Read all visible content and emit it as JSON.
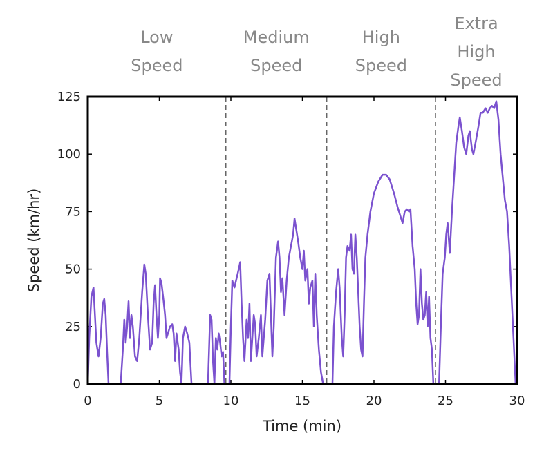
{
  "chart_data": {
    "type": "line",
    "xlabel": "Time (min)",
    "ylabel": "Speed (km/hr)",
    "xlim": [
      0,
      30
    ],
    "ylim": [
      0,
      125
    ],
    "xticks": [
      0,
      5,
      10,
      15,
      20,
      25,
      30
    ],
    "yticks": [
      0,
      25,
      50,
      75,
      100,
      125
    ],
    "color": "#7b52cf",
    "phase_boundaries": [
      9.65,
      16.7,
      24.3
    ],
    "phases": [
      [
        "Low",
        "Speed"
      ],
      [
        "Medium",
        "Speed"
      ],
      [
        "High",
        "Speed"
      ],
      [
        "Extra",
        "High",
        "Speed"
      ]
    ],
    "x": [
      0,
      0.1,
      0.25,
      0.4,
      0.5,
      0.6,
      0.75,
      0.9,
      1.05,
      1.15,
      1.25,
      1.35,
      1.45,
      2.3,
      2.45,
      2.55,
      2.65,
      2.75,
      2.85,
      2.95,
      3.05,
      3.15,
      3.3,
      3.45,
      3.6,
      3.8,
      3.95,
      4.05,
      4.2,
      4.35,
      4.5,
      4.6,
      4.7,
      4.8,
      4.9,
      5.0,
      5.05,
      5.15,
      5.3,
      5.4,
      5.5,
      5.6,
      5.75,
      5.9,
      6.0,
      6.1,
      6.2,
      6.35,
      6.45,
      6.55,
      6.65,
      6.8,
      6.95,
      7.1,
      7.25,
      8.4,
      8.55,
      8.65,
      8.75,
      8.85,
      8.95,
      9.05,
      9.15,
      9.25,
      9.35,
      9.45,
      9.55,
      9.7,
      9.9,
      10.0,
      10.1,
      10.25,
      10.4,
      10.55,
      10.65,
      10.75,
      10.85,
      10.95,
      11.1,
      11.2,
      11.3,
      11.4,
      11.5,
      11.6,
      11.7,
      11.8,
      11.95,
      12.1,
      12.2,
      12.4,
      12.55,
      12.7,
      12.8,
      12.9,
      13.0,
      13.15,
      13.3,
      13.4,
      13.5,
      13.6,
      13.75,
      13.9,
      14.05,
      14.2,
      14.35,
      14.45,
      14.55,
      14.7,
      14.85,
      15.0,
      15.1,
      15.2,
      15.35,
      15.45,
      15.55,
      15.7,
      15.8,
      15.9,
      16.0,
      16.15,
      16.3,
      16.45,
      16.9,
      17.1,
      17.2,
      17.35,
      17.5,
      17.6,
      17.75,
      17.85,
      17.95,
      18.05,
      18.15,
      18.3,
      18.4,
      18.5,
      18.6,
      18.7,
      18.8,
      18.9,
      19.0,
      19.1,
      19.2,
      19.3,
      19.4,
      19.55,
      19.75,
      20.0,
      20.3,
      20.6,
      20.85,
      21.1,
      21.4,
      21.65,
      21.85,
      22.0,
      22.15,
      22.3,
      22.45,
      22.55,
      22.7,
      22.85,
      22.95,
      23.05,
      23.15,
      23.25,
      23.35,
      23.45,
      23.55,
      23.65,
      23.75,
      23.85,
      23.95,
      24.05,
      24.15,
      24.45,
      24.55,
      24.7,
      24.8,
      24.95,
      25.05,
      25.15,
      25.3,
      25.45,
      25.6,
      25.75,
      25.9,
      26.0,
      26.15,
      26.3,
      26.45,
      26.6,
      26.7,
      26.85,
      26.95,
      27.1,
      27.3,
      27.45,
      27.6,
      27.8,
      27.95,
      28.1,
      28.25,
      28.4,
      28.55,
      28.7,
      28.85,
      29.0,
      29.15,
      29.3,
      29.45,
      29.6,
      29.75,
      29.9
    ],
    "values": [
      0,
      20,
      38,
      42,
      30,
      18,
      12,
      20,
      35,
      37,
      30,
      14,
      0,
      0,
      15,
      28,
      18,
      25,
      36,
      20,
      30,
      25,
      12,
      10,
      20,
      40,
      52,
      48,
      30,
      15,
      18,
      35,
      43,
      30,
      20,
      30,
      46,
      44,
      36,
      30,
      20,
      22,
      25,
      26,
      22,
      10,
      22,
      15,
      5,
      0,
      20,
      25,
      22,
      18,
      0,
      0,
      30,
      28,
      10,
      0,
      20,
      15,
      22,
      18,
      12,
      14,
      0,
      0,
      0,
      25,
      45,
      42,
      46,
      50,
      53,
      35,
      20,
      10,
      28,
      20,
      35,
      10,
      20,
      30,
      26,
      12,
      20,
      30,
      12,
      28,
      45,
      48,
      30,
      12,
      25,
      55,
      62,
      55,
      40,
      46,
      30,
      45,
      55,
      60,
      65,
      72,
      68,
      62,
      55,
      50,
      58,
      45,
      50,
      35,
      42,
      45,
      25,
      48,
      30,
      15,
      5,
      0,
      0,
      0,
      25,
      40,
      50,
      42,
      20,
      12,
      30,
      55,
      60,
      58,
      65,
      50,
      48,
      65,
      55,
      40,
      25,
      15,
      12,
      35,
      55,
      65,
      75,
      83,
      88,
      91,
      91,
      89,
      83,
      77,
      73,
      70,
      75,
      76,
      75,
      76,
      60,
      50,
      35,
      26,
      30,
      50,
      35,
      28,
      30,
      40,
      25,
      38,
      20,
      15,
      0,
      0,
      0,
      30,
      48,
      55,
      65,
      70,
      57,
      75,
      90,
      105,
      112,
      116,
      110,
      103,
      100,
      108,
      110,
      102,
      100,
      105,
      112,
      118,
      118,
      120,
      118,
      120,
      121,
      120,
      123,
      115,
      100,
      90,
      80,
      75,
      60,
      40,
      20,
      0
    ]
  }
}
